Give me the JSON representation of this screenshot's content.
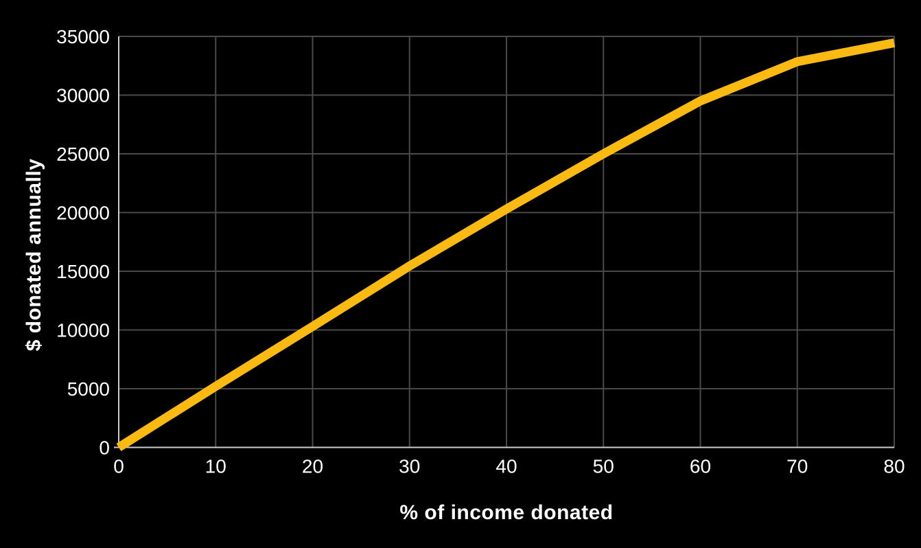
{
  "chart_data": {
    "type": "line",
    "title": "",
    "xlabel": "% of income donated",
    "ylabel": "$ donated annually",
    "x": [
      0,
      10,
      20,
      30,
      40,
      50,
      60,
      70,
      80
    ],
    "series": [
      {
        "name": "$ donated annually",
        "values": [
          0,
          5200,
          10300,
          15450,
          20300,
          25000,
          29500,
          32850,
          34450
        ]
      }
    ],
    "xlim": [
      0,
      80
    ],
    "ylim": [
      0,
      35000
    ],
    "xticks": [
      0,
      10,
      20,
      30,
      40,
      50,
      60,
      70,
      80
    ],
    "yticks": [
      0,
      5000,
      10000,
      15000,
      20000,
      25000,
      30000,
      35000
    ],
    "grid": true,
    "legend_position": "none",
    "colors": {
      "background": "#000000",
      "line": "#FBBA12",
      "gridline": "#4a4a4a",
      "axis": "#cccccc",
      "text": "#ffffff"
    }
  }
}
